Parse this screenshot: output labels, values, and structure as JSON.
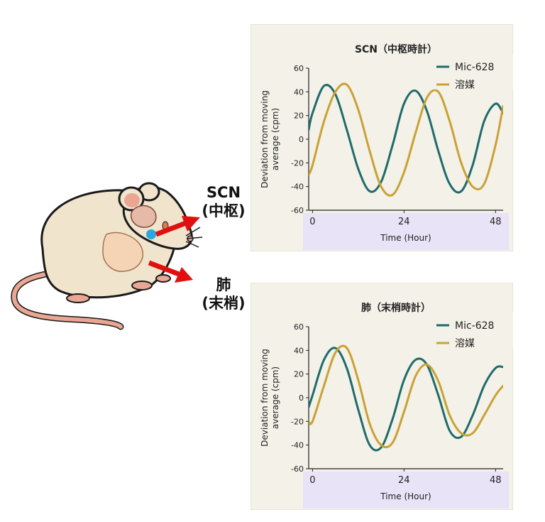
{
  "labels": {
    "scn_line1": "SCN",
    "scn_line2": "(中枢)",
    "lung_line1": "肺",
    "lung_line2": "(末梢)"
  },
  "colors": {
    "mic628": "#1e6b6b",
    "vehicle": "#c9a234",
    "panel_bg": "#f3f1e8",
    "xaxis_band": "#e8e3f6",
    "arrow": "#e01010"
  },
  "chart_data": [
    {
      "type": "line",
      "title": "SCN（中枢時計）",
      "xlabel": "Time (Hour)",
      "ylabel_line1": "Deviation from moving",
      "ylabel_line2": "average (cpm)",
      "xlim": [
        -1,
        50
      ],
      "ylim": [
        -60,
        60
      ],
      "xticks": [
        0,
        24,
        48
      ],
      "yticks": [
        -60,
        -40,
        -20,
        0,
        20,
        40,
        60
      ],
      "legend_position": "top-right",
      "series": [
        {
          "name": "Mic-628",
          "color": "#1e6b6b",
          "x": [
            -1,
            0,
            3,
            6,
            9,
            12,
            15,
            18,
            21,
            24,
            27,
            30,
            33,
            36,
            39,
            42,
            45,
            48,
            50
          ],
          "y": [
            8,
            22,
            45,
            38,
            8,
            -25,
            -44,
            -36,
            -5,
            30,
            41,
            24,
            -10,
            -38,
            -44,
            -22,
            15,
            30,
            22
          ]
        },
        {
          "name": "溶媒",
          "color": "#c9a234",
          "x": [
            -1,
            0,
            3,
            6,
            9,
            12,
            15,
            18,
            21,
            24,
            27,
            30,
            33,
            36,
            39,
            42,
            45,
            48,
            50
          ],
          "y": [
            -30,
            -22,
            15,
            40,
            46,
            25,
            -10,
            -40,
            -47,
            -28,
            5,
            35,
            40,
            15,
            -20,
            -40,
            -38,
            -5,
            28
          ]
        }
      ]
    },
    {
      "type": "line",
      "title": "肺（末梢時計）",
      "xlabel": "Time (Hour)",
      "ylabel_line1": "Deviation from moving",
      "ylabel_line2": "average (cpm)",
      "xlim": [
        -1,
        50
      ],
      "ylim": [
        -60,
        60
      ],
      "xticks": [
        0,
        24,
        48
      ],
      "yticks": [
        -60,
        -40,
        -20,
        0,
        20,
        40,
        60
      ],
      "legend_position": "top-right",
      "series": [
        {
          "name": "Mic-628",
          "color": "#1e6b6b",
          "x": [
            -1,
            0,
            3,
            6,
            9,
            12,
            15,
            18,
            21,
            24,
            27,
            30,
            33,
            36,
            39,
            42,
            45,
            48,
            50
          ],
          "y": [
            -8,
            2,
            32,
            42,
            25,
            -10,
            -40,
            -42,
            -18,
            15,
            32,
            28,
            2,
            -28,
            -33,
            -15,
            10,
            25,
            26
          ]
        },
        {
          "name": "溶媒",
          "color": "#c9a234",
          "x": [
            -1,
            0,
            3,
            6,
            9,
            12,
            15,
            18,
            21,
            24,
            27,
            30,
            33,
            36,
            39,
            42,
            45,
            48,
            50
          ],
          "y": [
            -20,
            -20,
            10,
            38,
            42,
            15,
            -22,
            -40,
            -38,
            -12,
            18,
            28,
            14,
            -15,
            -30,
            -30,
            -15,
            2,
            10
          ]
        }
      ]
    }
  ]
}
